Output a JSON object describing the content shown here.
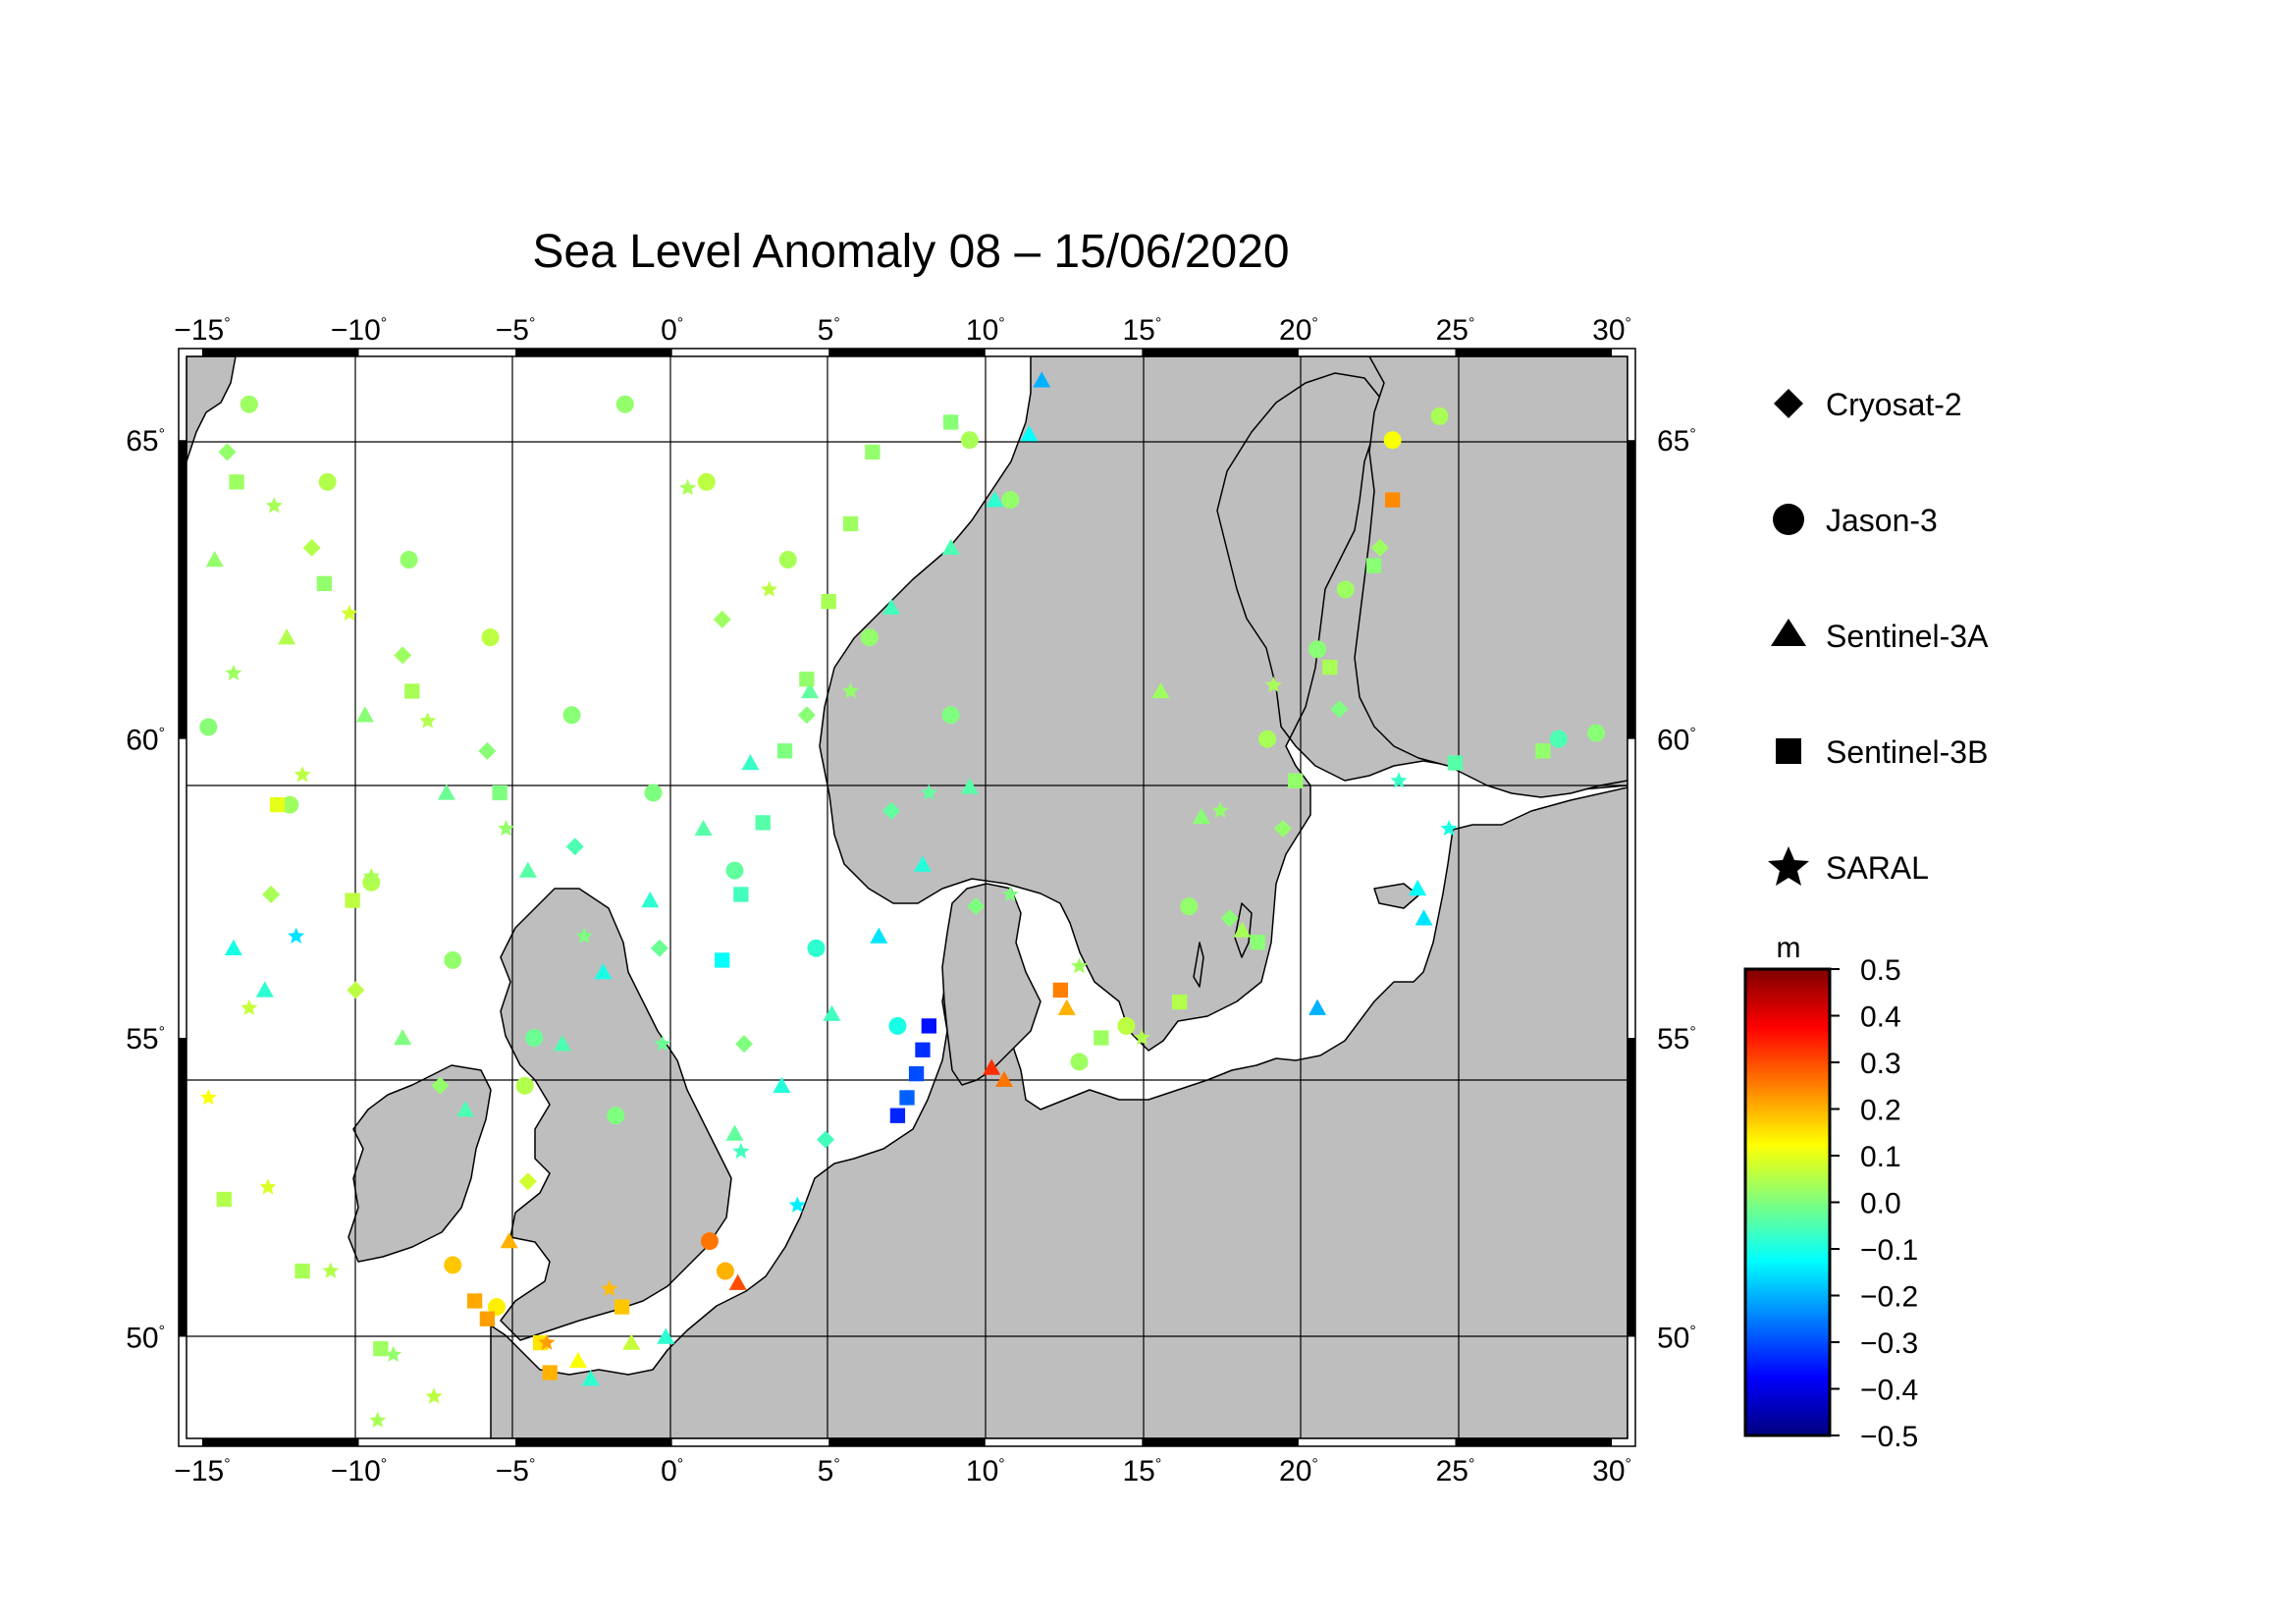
{
  "title": "Sea Level Anomaly 08 – 15/06/2020",
  "map": {
    "lon_ticks": [
      -15,
      -10,
      -5,
      0,
      5,
      10,
      15,
      20,
      25,
      30
    ],
    "lat_ticks": [
      50,
      55,
      60,
      65
    ],
    "lon_range": [
      -15.5,
      30.5
    ],
    "lat_range": [
      48.3,
      66.4
    ],
    "degree_symbol": "°",
    "land_color": "#bebebe",
    "sea_color": "#ffffff"
  },
  "legend": {
    "items": [
      {
        "label": "Cryosat-2",
        "marker": "diamond"
      },
      {
        "label": "Jason-3",
        "marker": "circle"
      },
      {
        "label": "Sentinel-3A",
        "marker": "triangle"
      },
      {
        "label": "Sentinel-3B",
        "marker": "square"
      },
      {
        "label": "SARAL",
        "marker": "star"
      }
    ]
  },
  "colorbar": {
    "unit": "m",
    "min": -0.5,
    "max": 0.5,
    "ticks": [
      "0.5",
      "0.4",
      "0.3",
      "0.2",
      "0.1",
      "0.0",
      "−0.1",
      "−0.2",
      "−0.3",
      "−0.4",
      "−0.5"
    ],
    "colors": [
      "#00007f",
      "#0000ff",
      "#007fff",
      "#00ffff",
      "#7fff7f",
      "#ffff00",
      "#ff7f00",
      "#ff0000",
      "#7f0000"
    ]
  },
  "chart_data": {
    "type": "scatter",
    "title": "Sea Level Anomaly 08 – 15/06/2020",
    "xlabel": "",
    "ylabel": "",
    "xlim": [
      -15.5,
      30.5
    ],
    "ylim": [
      48.3,
      66.4
    ],
    "color_unit": "m",
    "color_range": [
      -0.5,
      0.5
    ],
    "series": [
      {
        "name": "Cryosat-2",
        "marker": "diamond",
        "points": [
          [
            -14.2,
            64.8,
            0.02
          ],
          [
            -11.5,
            63.2,
            0.05
          ],
          [
            -8.6,
            61.4,
            0.03
          ],
          [
            -5.9,
            59.8,
            0.01
          ],
          [
            -3.1,
            58.2,
            -0.05
          ],
          [
            -0.4,
            56.5,
            -0.02
          ],
          [
            2.3,
            54.9,
            0.0
          ],
          [
            4.9,
            53.3,
            -0.06
          ],
          [
            -12.8,
            57.4,
            0.04
          ],
          [
            -10.1,
            55.8,
            0.06
          ],
          [
            -7.4,
            54.2,
            0.02
          ],
          [
            -4.6,
            52.6,
            0.08
          ],
          [
            1.6,
            62.0,
            0.03
          ],
          [
            4.3,
            60.4,
            0.01
          ],
          [
            7.0,
            58.8,
            -0.03
          ],
          [
            9.7,
            57.2,
            0.0
          ],
          [
            17.8,
            57.0,
            0.01
          ],
          [
            19.5,
            58.5,
            0.02
          ],
          [
            21.3,
            60.5,
            0.0
          ],
          [
            22.6,
            63.2,
            0.03
          ]
        ]
      },
      {
        "name": "Jason-3",
        "marker": "circle",
        "points": [
          [
            -13.5,
            65.6,
            0.03
          ],
          [
            -11.0,
            64.3,
            0.05
          ],
          [
            -8.4,
            63.0,
            0.02
          ],
          [
            -5.8,
            61.7,
            0.06
          ],
          [
            -3.2,
            60.4,
            0.01
          ],
          [
            -0.6,
            59.1,
            0.0
          ],
          [
            2.0,
            57.8,
            -0.03
          ],
          [
            4.6,
            56.5,
            -0.08
          ],
          [
            7.2,
            55.2,
            -0.1
          ],
          [
            -1.5,
            65.6,
            0.02
          ],
          [
            1.1,
            64.3,
            0.06
          ],
          [
            3.7,
            63.0,
            0.04
          ],
          [
            6.3,
            61.7,
            0.02
          ],
          [
            8.9,
            60.4,
            0.0
          ],
          [
            -14.8,
            60.2,
            0.01
          ],
          [
            -12.2,
            58.9,
            0.03
          ],
          [
            -9.6,
            57.6,
            0.05
          ],
          [
            -7.0,
            56.3,
            0.02
          ],
          [
            -4.4,
            55.0,
            -0.02
          ],
          [
            -1.8,
            53.7,
            0.0
          ],
          [
            1.2,
            51.6,
            0.26
          ],
          [
            1.7,
            51.1,
            0.2
          ],
          [
            -5.6,
            50.5,
            0.14
          ],
          [
            -7.0,
            51.2,
            0.18
          ],
          [
            -4.7,
            54.2,
            0.05
          ],
          [
            9.5,
            65.0,
            0.04
          ],
          [
            10.8,
            64.0,
            0.02
          ],
          [
            21.5,
            62.5,
            0.03
          ],
          [
            20.6,
            61.5,
            0.01
          ],
          [
            19.0,
            60.0,
            0.04
          ],
          [
            16.5,
            57.2,
            0.02
          ],
          [
            14.5,
            55.2,
            0.06
          ],
          [
            13.0,
            54.6,
            0.03
          ],
          [
            28.3,
            60.0,
            -0.05
          ],
          [
            29.5,
            60.1,
            0.01
          ],
          [
            24.5,
            65.4,
            0.04
          ],
          [
            23.0,
            65.0,
            0.12
          ]
        ]
      },
      {
        "name": "Sentinel-3A",
        "marker": "triangle",
        "points": [
          [
            11.8,
            66.0,
            -0.2
          ],
          [
            11.4,
            65.1,
            -0.12
          ],
          [
            10.3,
            64.0,
            -0.08
          ],
          [
            8.9,
            63.2,
            -0.05
          ],
          [
            7.0,
            62.2,
            -0.06
          ],
          [
            4.4,
            60.8,
            -0.03
          ],
          [
            2.5,
            59.6,
            -0.07
          ],
          [
            1.0,
            58.5,
            -0.04
          ],
          [
            -0.7,
            57.3,
            -0.08
          ],
          [
            -2.2,
            56.1,
            -0.1
          ],
          [
            -3.5,
            54.9,
            -0.05
          ],
          [
            2.0,
            53.4,
            -0.03
          ],
          [
            3.5,
            54.2,
            -0.09
          ],
          [
            5.1,
            55.4,
            -0.06
          ],
          [
            6.6,
            56.7,
            -0.15
          ],
          [
            8.0,
            57.9,
            -0.09
          ],
          [
            9.5,
            59.2,
            -0.04
          ],
          [
            2.1,
            50.9,
            0.3
          ],
          [
            10.2,
            54.5,
            0.33
          ],
          [
            10.6,
            54.3,
            0.26
          ],
          [
            12.6,
            55.5,
            0.2
          ],
          [
            20.6,
            55.5,
            -0.2
          ],
          [
            23.8,
            57.5,
            -0.12
          ],
          [
            24.0,
            57.0,
            -0.15
          ],
          [
            -14.0,
            56.5,
            -0.1
          ],
          [
            -13.0,
            55.8,
            -0.08
          ],
          [
            -8.6,
            55.0,
            0.0
          ],
          [
            -6.6,
            53.8,
            -0.05
          ],
          [
            -5.2,
            51.6,
            0.2
          ],
          [
            -3.0,
            49.6,
            0.12
          ],
          [
            -2.6,
            49.3,
            -0.08
          ],
          [
            -1.3,
            49.9,
            0.07
          ],
          [
            -0.2,
            50.0,
            -0.08
          ],
          [
            -14.6,
            63.0,
            0.02
          ],
          [
            -12.3,
            61.7,
            0.05
          ],
          [
            -9.8,
            60.4,
            0.01
          ],
          [
            -7.2,
            59.1,
            -0.02
          ],
          [
            -4.6,
            57.8,
            -0.04
          ],
          [
            15.6,
            60.8,
            0.03
          ],
          [
            16.9,
            58.7,
            0.01
          ],
          [
            18.2,
            56.8,
            0.04
          ]
        ]
      },
      {
        "name": "Sentinel-3B",
        "marker": "square",
        "points": [
          [
            8.2,
            55.2,
            -0.36
          ],
          [
            8.0,
            54.8,
            -0.33
          ],
          [
            7.8,
            54.4,
            -0.3
          ],
          [
            7.5,
            54.0,
            -0.28
          ],
          [
            7.2,
            53.7,
            -0.34
          ],
          [
            1.6,
            56.3,
            -0.12
          ],
          [
            2.2,
            57.4,
            -0.06
          ],
          [
            2.9,
            58.6,
            -0.04
          ],
          [
            3.6,
            59.8,
            0.0
          ],
          [
            4.3,
            61.0,
            0.02
          ],
          [
            5.0,
            62.3,
            0.04
          ],
          [
            5.7,
            63.6,
            0.03
          ],
          [
            6.4,
            64.8,
            0.02
          ],
          [
            8.9,
            65.3,
            0.01
          ],
          [
            -13.9,
            64.3,
            0.03
          ],
          [
            -11.1,
            62.6,
            0.02
          ],
          [
            -8.3,
            60.8,
            0.04
          ],
          [
            -5.5,
            59.1,
            0.0
          ],
          [
            -12.6,
            58.9,
            0.1
          ],
          [
            -10.2,
            57.3,
            0.06
          ],
          [
            -14.3,
            52.3,
            0.05
          ],
          [
            -11.8,
            51.1,
            0.04
          ],
          [
            -9.3,
            49.8,
            0.03
          ],
          [
            -6.3,
            50.6,
            0.21
          ],
          [
            -5.9,
            50.3,
            0.22
          ],
          [
            -1.6,
            50.5,
            0.18
          ],
          [
            -3.9,
            49.4,
            0.2
          ],
          [
            -4.2,
            49.9,
            0.15
          ],
          [
            12.4,
            55.8,
            0.25
          ],
          [
            23.0,
            64.0,
            0.24
          ],
          [
            13.7,
            55.0,
            0.03
          ],
          [
            16.2,
            55.6,
            0.05
          ],
          [
            18.7,
            56.6,
            0.01
          ],
          [
            19.9,
            59.3,
            0.02
          ],
          [
            21.0,
            61.2,
            0.04
          ],
          [
            22.4,
            62.9,
            0.01
          ],
          [
            27.8,
            59.8,
            0.02
          ],
          [
            25.0,
            59.6,
            -0.04
          ]
        ]
      },
      {
        "name": "SARAL",
        "marker": "star",
        "points": [
          [
            -12.7,
            63.9,
            0.04
          ],
          [
            -10.3,
            62.1,
            0.08
          ],
          [
            -7.8,
            60.3,
            0.05
          ],
          [
            -5.3,
            58.5,
            0.02
          ],
          [
            -2.8,
            56.7,
            0.0
          ],
          [
            -0.3,
            54.9,
            -0.02
          ],
          [
            2.2,
            53.1,
            -0.06
          ],
          [
            4.0,
            52.2,
            -0.14
          ],
          [
            -14.0,
            61.1,
            0.03
          ],
          [
            -11.8,
            59.4,
            0.06
          ],
          [
            -9.6,
            57.7,
            0.04
          ],
          [
            -12.0,
            56.7,
            -0.15
          ],
          [
            -13.5,
            55.5,
            0.07
          ],
          [
            -14.8,
            54.0,
            0.12
          ],
          [
            -12.9,
            52.5,
            0.09
          ],
          [
            -10.9,
            51.1,
            0.05
          ],
          [
            -8.9,
            49.7,
            0.02
          ],
          [
            0.5,
            64.2,
            0.04
          ],
          [
            3.1,
            62.5,
            0.06
          ],
          [
            5.7,
            60.8,
            0.02
          ],
          [
            8.2,
            59.1,
            -0.03
          ],
          [
            10.8,
            57.4,
            0.0
          ],
          [
            13.0,
            56.2,
            0.03
          ],
          [
            15.0,
            55.0,
            0.05
          ],
          [
            17.5,
            58.8,
            0.02
          ],
          [
            19.2,
            60.9,
            0.04
          ],
          [
            23.2,
            59.3,
            -0.07
          ],
          [
            24.8,
            58.5,
            -0.1
          ],
          [
            -2.0,
            50.8,
            0.19
          ],
          [
            -4.0,
            49.9,
            0.22
          ],
          [
            -7.6,
            49.0,
            0.06
          ],
          [
            -9.4,
            48.6,
            0.04
          ]
        ]
      }
    ]
  }
}
